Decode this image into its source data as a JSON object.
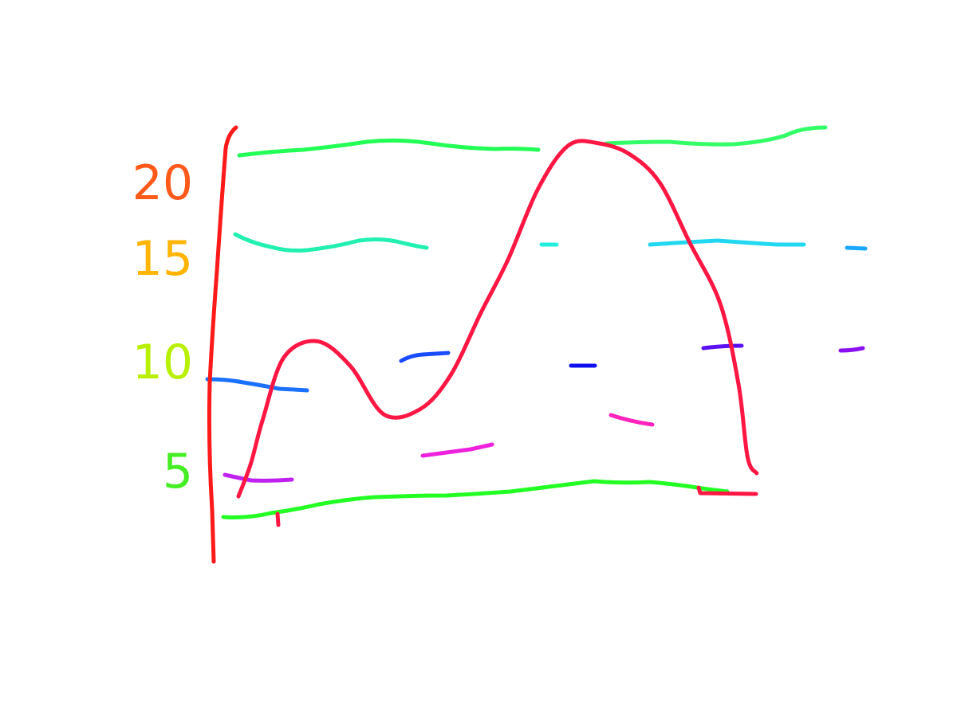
{
  "chart_data": {
    "type": "line",
    "title": "",
    "xlabel": "",
    "ylabel": "",
    "ylim": [
      0,
      21
    ],
    "y_ticks": [
      {
        "label": "20",
        "value": 20,
        "color": "#ff5a1a"
      },
      {
        "label": "15",
        "value": 15,
        "color": "#ffb400"
      },
      {
        "label": "10",
        "value": 10,
        "color": "#b8f000"
      },
      {
        "label": "5",
        "value": 5,
        "color": "#44ee22"
      }
    ],
    "axis_color": "#ff1a1a",
    "series": [
      {
        "color": "#ff1744",
        "points": [
          [
            0.5,
            1.2
          ],
          [
            0.9,
            3.0
          ],
          [
            1.3,
            5.5
          ],
          [
            2.0,
            9.0
          ],
          [
            3.1,
            9.9
          ],
          [
            4.2,
            8.5
          ],
          [
            5.3,
            5.8
          ],
          [
            6.5,
            6.1
          ],
          [
            7.5,
            8.0
          ],
          [
            8.5,
            11.5
          ],
          [
            9.4,
            14.5
          ],
          [
            10.4,
            18.5
          ],
          [
            11.4,
            20.9
          ],
          [
            12.4,
            21.0
          ],
          [
            13.4,
            20.4
          ],
          [
            14.4,
            18.8
          ],
          [
            15.4,
            15.4
          ],
          [
            16.4,
            12.0
          ],
          [
            17.0,
            7.5
          ],
          [
            17.3,
            3.4
          ],
          [
            17.6,
            2.5
          ]
        ]
      }
    ],
    "gridlines": [
      {
        "value": 20,
        "color": "#22ff55"
      },
      {
        "value": 15,
        "color": "#22e8c8"
      },
      {
        "value": 10,
        "color": "#1a55ff"
      },
      {
        "value": 5,
        "color": "#ee22dd"
      },
      {
        "value": 2.5,
        "color": "#22ff22"
      }
    ]
  }
}
